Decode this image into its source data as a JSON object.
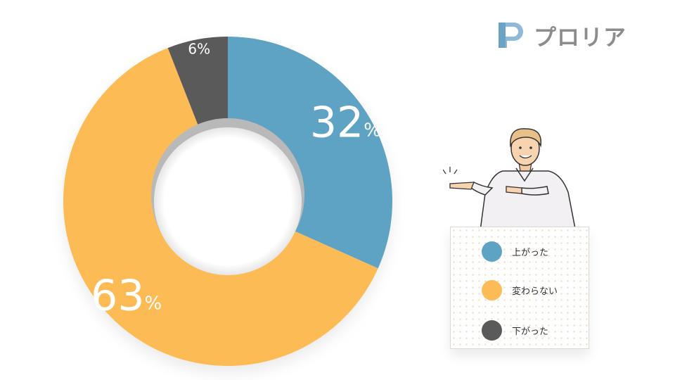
{
  "brand": {
    "name": "プロリア",
    "color": "#8c8c8c",
    "mark_color": "#6aa3c6"
  },
  "chart_data": {
    "type": "pie",
    "variant": "donut",
    "title": "",
    "slices": [
      {
        "label": "上がった",
        "value": 32,
        "color": "#5fa3c4"
      },
      {
        "label": "変わらない",
        "value": 63,
        "color": "#fdbb57"
      },
      {
        "label": "下がった",
        "value": 6,
        "color": "#5a5a5a"
      }
    ],
    "data_labels": [
      "32",
      "63",
      "6"
    ],
    "unit": "%",
    "legend_position": "right"
  }
}
